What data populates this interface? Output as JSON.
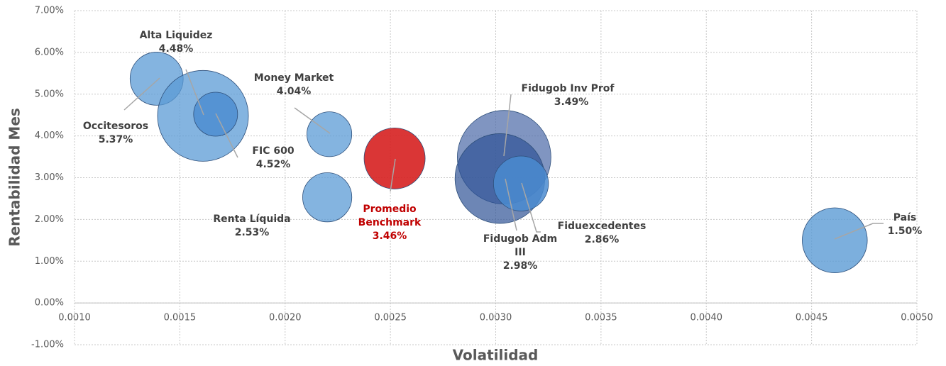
{
  "chart_data": {
    "type": "bubble",
    "xlabel": "Volatilidad",
    "ylabel": "Rentabilidad Mes",
    "xlim": [
      0.001,
      0.005
    ],
    "ylim": [
      -1,
      7
    ],
    "xticks": [
      {
        "value": 0.001,
        "label": "0.0010"
      },
      {
        "value": 0.0015,
        "label": "0.0015"
      },
      {
        "value": 0.002,
        "label": "0.0020"
      },
      {
        "value": 0.0025,
        "label": "0.0025"
      },
      {
        "value": 0.003,
        "label": "0.0030"
      },
      {
        "value": 0.0035,
        "label": "0.0035"
      },
      {
        "value": 0.004,
        "label": "0.0040"
      },
      {
        "value": 0.0045,
        "label": "0.0045"
      },
      {
        "value": 0.005,
        "label": "0.0050"
      }
    ],
    "yticks": [
      {
        "value": -1,
        "label": "-1.00%"
      },
      {
        "value": 0,
        "label": "0.00%"
      },
      {
        "value": 1,
        "label": "1.00%"
      },
      {
        "value": 2,
        "label": "2.00%"
      },
      {
        "value": 3,
        "label": "3.00%"
      },
      {
        "value": 4,
        "label": "4.00%"
      },
      {
        "value": 5,
        "label": "5.00%"
      },
      {
        "value": 6,
        "label": "6.00%"
      },
      {
        "value": 7,
        "label": "7.00%"
      }
    ],
    "grid": true,
    "series": [
      {
        "name": "Occitesoros",
        "color": "#5b9bd5",
        "x": [
          0.00139
        ],
        "values": [
          5.37
        ],
        "sizes": [
          14
        ],
        "value_labels": [
          "5.37%"
        ]
      },
      {
        "name": "Alta Liquidez",
        "color": "#5b9bd5",
        "x": [
          0.00161
        ],
        "values": [
          4.48
        ],
        "sizes": [
          41
        ],
        "value_labels": [
          "4.48%"
        ]
      },
      {
        "name": "FIC 600",
        "color": "#4a8bd0",
        "x": [
          0.00167
        ],
        "values": [
          4.52
        ],
        "sizes": [
          9.6
        ],
        "value_labels": [
          "4.52%"
        ]
      },
      {
        "name": "Money Market",
        "color": "#5b9bd5",
        "x": [
          0.00221
        ],
        "values": [
          4.04
        ],
        "sizes": [
          10
        ],
        "value_labels": [
          "4.04%"
        ]
      },
      {
        "name": "Renta Líquida",
        "color": "#5b9bd5",
        "x": [
          0.0022
        ],
        "values": [
          2.53
        ],
        "sizes": [
          12
        ],
        "value_labels": [
          "2.53%"
        ]
      },
      {
        "name": "Promedio Benchmark",
        "color": "#d62020",
        "x": [
          0.00252
        ],
        "values": [
          3.46
        ],
        "sizes": [
          18.5
        ],
        "value_labels": [
          "3.46%"
        ]
      },
      {
        "name": "Fidugob Inv Prof",
        "color": "#4a68a6",
        "x": [
          0.00304
        ],
        "values": [
          3.49
        ],
        "sizes": [
          43.5
        ],
        "value_labels": [
          "3.49%"
        ]
      },
      {
        "name": "Fidugob Adm III",
        "color": "#2f5396",
        "x": [
          0.00302
        ],
        "values": [
          2.98
        ],
        "sizes": [
          40
        ],
        "value_labels": [
          "2.98%"
        ]
      },
      {
        "name": "Fiduexcedentes",
        "color": "#4a8bd0",
        "x": [
          0.00312
        ],
        "values": [
          2.86
        ],
        "sizes": [
          15
        ],
        "value_labels": [
          "2.86%"
        ]
      },
      {
        "name": "País",
        "color": "#5b9bd5",
        "x": [
          0.00461
        ],
        "values": [
          1.5
        ],
        "sizes": [
          21
        ],
        "value_labels": [
          "1.50%"
        ]
      }
    ]
  }
}
